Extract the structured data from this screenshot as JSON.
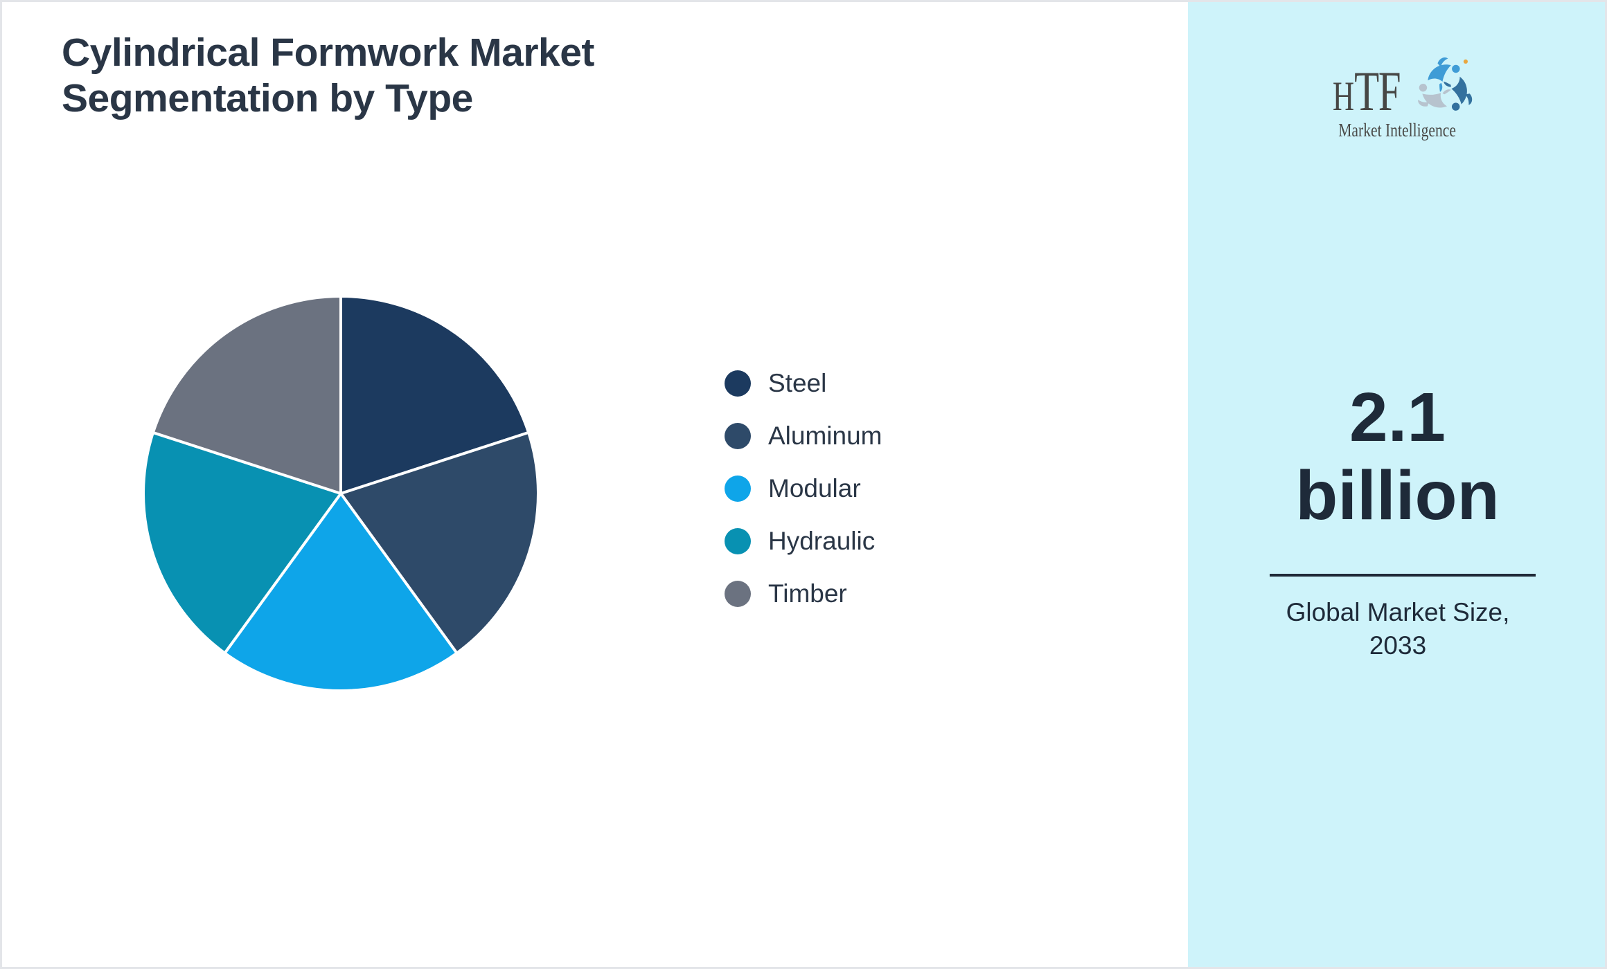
{
  "page": {
    "background": "#FFFFFF",
    "border_color": "#E3E5E9"
  },
  "main": {
    "title": "Cylindrical Formwork Market Segmentation by Type",
    "title_color": "#2A3646"
  },
  "chart_data": {
    "type": "pie",
    "title": "Cylindrical Formwork Market Segmentation by Type",
    "labels": [
      "Steel",
      "Aluminum",
      "Modular",
      "Hydraulic",
      "Timber"
    ],
    "values": [
      20,
      20,
      20,
      20,
      20
    ],
    "colors": [
      "#1C3A5F",
      "#2E4A69",
      "#0EA5E9",
      "#0891B2",
      "#6B7280"
    ],
    "start_angle_deg": 0,
    "direction": "clockwise",
    "slice_edge_color": "#FFFFFF",
    "legend_position": "right"
  },
  "sidebar": {
    "background": "#CEF3FA",
    "text_color": "#1E2A39",
    "divider_color": "#1F2937",
    "logo": {
      "text": "HTF",
      "subtext": "Market Intelligence",
      "swirl_colors": [
        "#3F9CD6",
        "#33719E",
        "#B7C3CE"
      ],
      "accent_dot_color": "#E9A63F"
    },
    "market_size": {
      "value": "2.1",
      "unit": "billion"
    },
    "caption": {
      "line1": "Global Market Size,",
      "line2": "2033"
    }
  }
}
